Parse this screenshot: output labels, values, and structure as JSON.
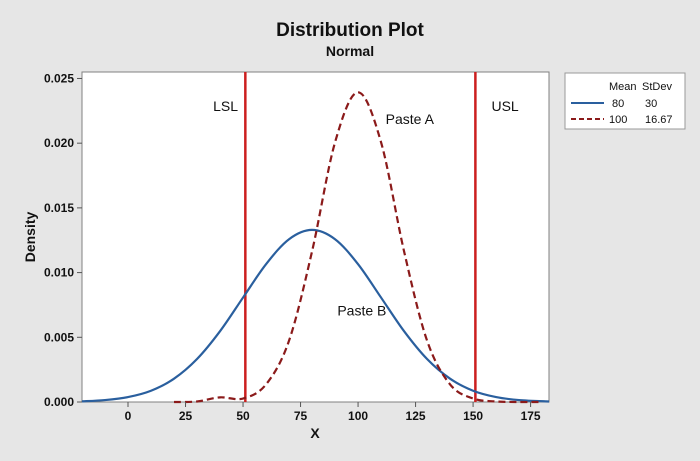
{
  "chart_data": {
    "type": "line",
    "title": "Distribution Plot",
    "subtitle": "Normal",
    "xlabel": "X",
    "ylabel": "Density",
    "xlim": [
      -20,
      183
    ],
    "ylim": [
      0,
      0.0255
    ],
    "xticks": [
      0,
      25,
      50,
      75,
      100,
      125,
      150,
      175
    ],
    "yticks": [
      "0.000",
      "0.005",
      "0.010",
      "0.015",
      "0.020",
      "0.025"
    ],
    "series": [
      {
        "distribution": "normal",
        "mean": 80,
        "stdev": 30,
        "color": "#2a5f9e",
        "dash": "solid",
        "x": [
          -20,
          -10,
          0,
          10,
          20,
          30,
          40,
          50,
          60,
          70,
          80,
          90,
          100,
          110,
          120,
          130,
          140,
          150,
          160,
          170,
          183
        ],
        "y": [
          5e-05,
          0.00015,
          0.00038,
          0.00087,
          0.0018,
          0.00332,
          0.00547,
          0.00807,
          0.01065,
          0.01258,
          0.0133,
          0.01258,
          0.01065,
          0.00807,
          0.00547,
          0.00332,
          0.0018,
          0.00087,
          0.00038,
          0.00015,
          4e-05
        ]
      },
      {
        "distribution": "normal",
        "mean": 100,
        "stdev": 16.67,
        "color": "#8b1a1a",
        "dash": "dashed",
        "x": [
          20,
          30,
          40,
          50,
          60,
          70,
          80,
          90,
          100,
          110,
          120,
          130,
          140,
          150,
          160,
          170,
          180
        ],
        "y": [
          0.0,
          4e-05,
          0.00036,
          0.00027,
          0.00136,
          0.00474,
          0.01164,
          0.02007,
          0.02393,
          0.02007,
          0.01164,
          0.00474,
          0.00136,
          0.00027,
          4e-05,
          0.0,
          0.0
        ]
      }
    ],
    "vlines": [
      {
        "x": 51,
        "color": "#cc1f1f"
      },
      {
        "x": 151,
        "color": "#cc1f1f"
      }
    ],
    "annotations": [
      {
        "text": "LSL",
        "x": 37,
        "y": 0.0225
      },
      {
        "text": "USL",
        "x": 158,
        "y": 0.0225
      },
      {
        "text": "Paste A",
        "x": 112,
        "y": 0.0215
      },
      {
        "text": "Paste B",
        "x": 91,
        "y": 0.0067
      }
    ],
    "legend": {
      "position": "top-right",
      "headers": [
        "Mean",
        "StDev"
      ],
      "rows": [
        {
          "mean": "80",
          "stdev": "30"
        },
        {
          "mean": "100",
          "stdev": "16.67"
        }
      ]
    },
    "grid": false
  }
}
